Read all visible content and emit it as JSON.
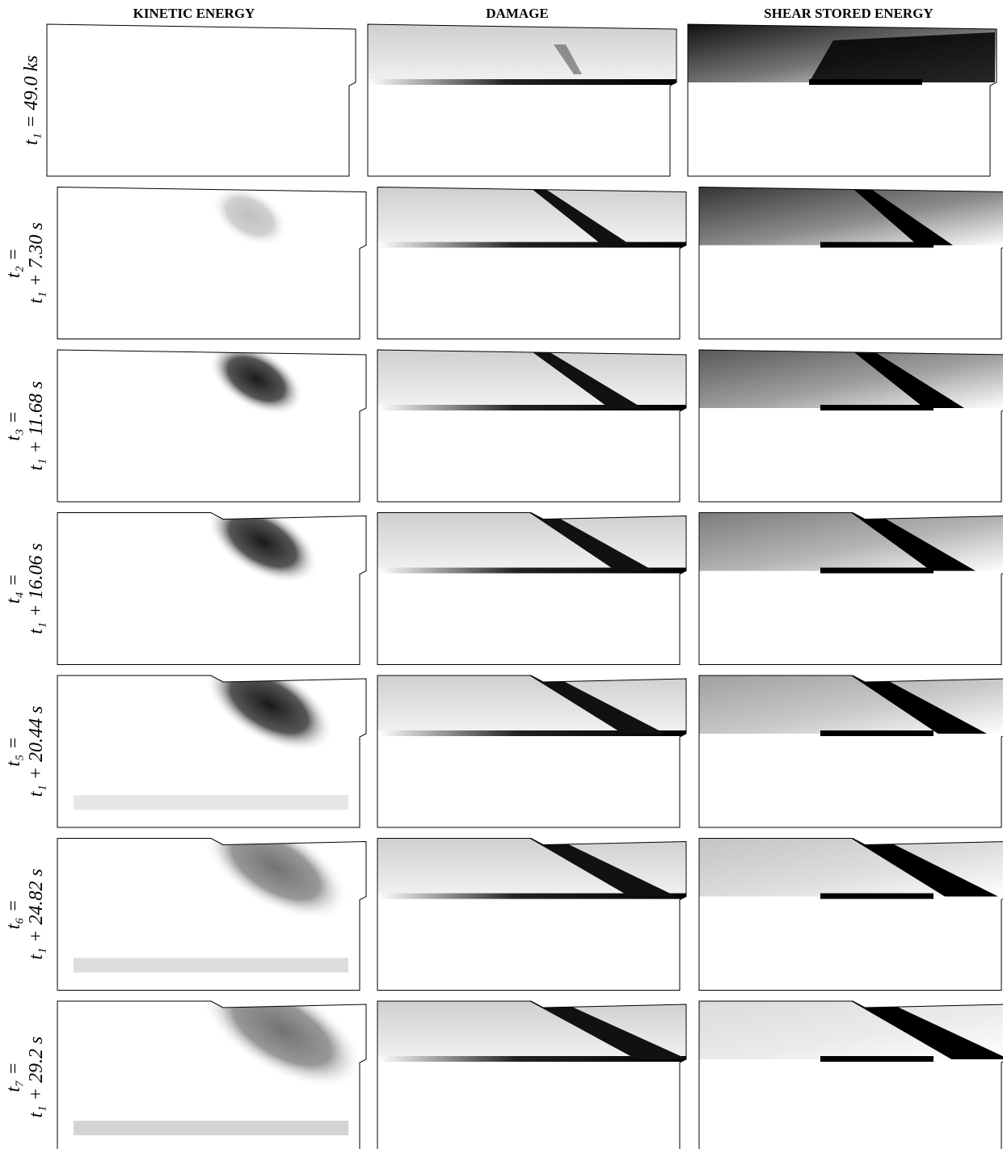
{
  "columns": [
    "KINETIC ENERGY",
    "DAMAGE",
    "SHEAR STORED ENERGY"
  ],
  "rows": [
    {
      "line1": "t₁ = 49.0 ks"
    },
    {
      "line1": "t₂ =",
      "line2": "t₁ + 7.30 s"
    },
    {
      "line1": "t₃ =",
      "line2": "t₁ + 11.68 s"
    },
    {
      "line1": "t₄ =",
      "line2": "t₁ + 16.06 s"
    },
    {
      "line1": "t₅ =",
      "line2": "t₁ + 20.44 s"
    },
    {
      "line1": "t₆ =",
      "line2": "t₁ + 24.82 s"
    },
    {
      "line1": "t₇ =",
      "line2": "t₁ + 29.2 s"
    }
  ]
}
